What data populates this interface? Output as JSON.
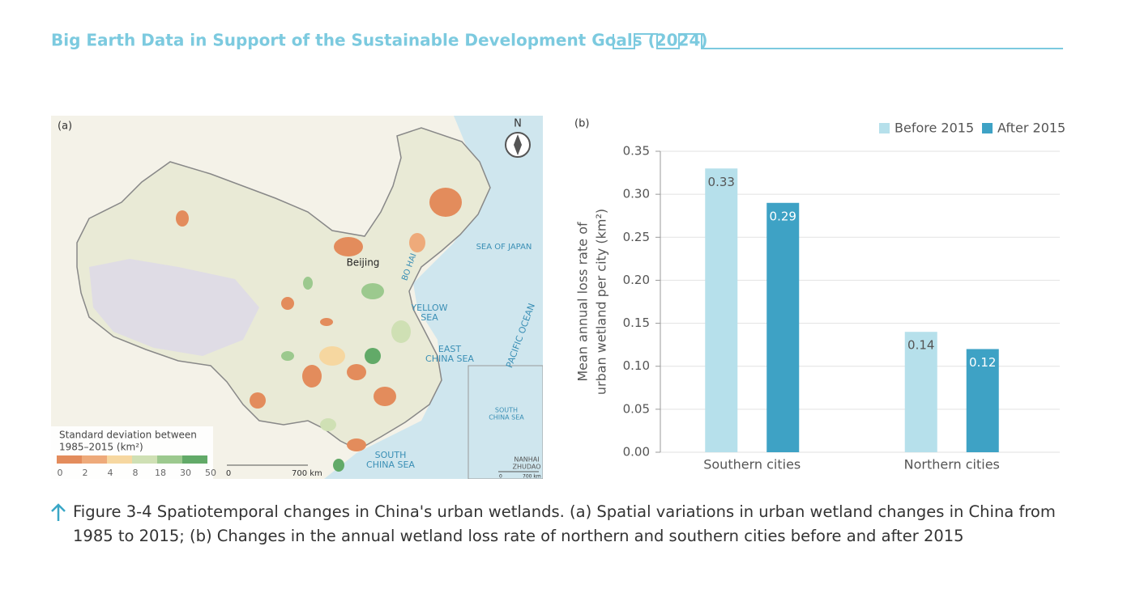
{
  "header": {
    "title": "Big Earth Data in Support of the Sustainable Development Goals (2024)"
  },
  "map": {
    "panel_label": "(a)",
    "north": "N",
    "labels": [
      [
        "Beijing"
      ],
      [
        "BO HAI"
      ],
      [
        "SEA OF JAPAN"
      ],
      [
        "YELLOW",
        "SEA"
      ],
      [
        "EAST",
        "CHINA SEA"
      ],
      [
        "PACIFIC OCEAN"
      ],
      [
        "SOUTH",
        "CHINA SEA"
      ],
      [
        "SOUTH",
        "CHINA SEA"
      ],
      [
        "NANHAI",
        "ZHUDAO"
      ]
    ],
    "legend": {
      "title": [
        "Standard deviation between",
        "1985–2015 (km²)"
      ],
      "ticks": [
        0,
        2,
        4,
        8,
        18,
        30,
        50
      ],
      "colors": [
        "#e38c5c",
        "#eeaa7a",
        "#f6d7a0",
        "#cfe0b4",
        "#9cc98e",
        "#62aa68"
      ]
    },
    "scale": [
      "0",
      "700 km"
    ],
    "inset_scale": [
      "0",
      "700 km"
    ]
  },
  "chart_data": {
    "type": "bar",
    "panel_label": "(b)",
    "ylabel": [
      "Mean annual loss rate of",
      "urban wetland per city (km²)"
    ],
    "categories": [
      "Southern cities",
      "Northern cities"
    ],
    "series": [
      {
        "name": "Before 2015",
        "color": "#b6e0eb",
        "values": [
          0.33,
          0.14
        ]
      },
      {
        "name": "After 2015",
        "color": "#3ea2c5",
        "values": [
          0.29,
          0.12
        ]
      }
    ],
    "ylim": [
      0,
      0.35
    ],
    "yticks": [
      {
        "value": 0,
        "label": "0.00"
      },
      {
        "value": 0.05,
        "label": "0.05"
      },
      {
        "value": 0.1,
        "label": "0.10"
      },
      {
        "value": 0.15,
        "label": "0.15"
      },
      {
        "value": 0.2,
        "label": "0.20"
      },
      {
        "value": 0.25,
        "label": "0.25"
      },
      {
        "value": 0.3,
        "label": "0.30"
      },
      {
        "value": 0.35,
        "label": "0.35"
      }
    ],
    "grid": true,
    "legend": "top-right"
  },
  "caption": {
    "text": "Figure 3-4 Spatiotemporal changes in China's urban wetlands. (a) Spatial variations in urban wetland changes in China from 1985 to 2015; (b) Changes in the annual wetland loss rate of northern and southern cities before and after 2015"
  }
}
